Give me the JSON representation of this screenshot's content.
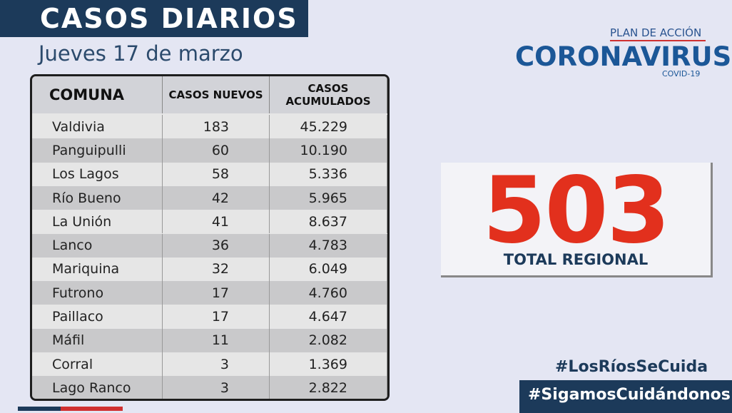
{
  "header": {
    "title": "CASOS DIARIOS",
    "date": "Jueves 17 de marzo"
  },
  "logo": {
    "plan": "PLAN DE ACCIÓN",
    "name": "CORONAVIRUS",
    "sub": "COVID-19"
  },
  "table": {
    "columns": [
      "COMUNA",
      "CASOS NUEVOS",
      "CASOS ACUMULADOS"
    ],
    "rows": [
      [
        "Valdivia",
        "183",
        "45.229"
      ],
      [
        "Panguipulli",
        "60",
        "10.190"
      ],
      [
        "Los Lagos",
        "58",
        "5.336"
      ],
      [
        "Río Bueno",
        "42",
        "5.965"
      ],
      [
        "La Unión",
        "41",
        "8.637"
      ],
      [
        "Lanco",
        "36",
        "4.783"
      ],
      [
        "Mariquina",
        "32",
        "6.049"
      ],
      [
        "Futrono",
        "17",
        "4.760"
      ],
      [
        "Paillaco",
        "17",
        "4.647"
      ],
      [
        "Máfil",
        "11",
        "2.082"
      ],
      [
        "Corral",
        "3",
        "1.369"
      ],
      [
        "Lago Ranco",
        "3",
        "2.822"
      ]
    ]
  },
  "total": {
    "value": "503",
    "label": "TOTAL REGIONAL"
  },
  "hashtags": [
    "#LosRíosSeCuida",
    "#SigamosCuidándonos"
  ]
}
